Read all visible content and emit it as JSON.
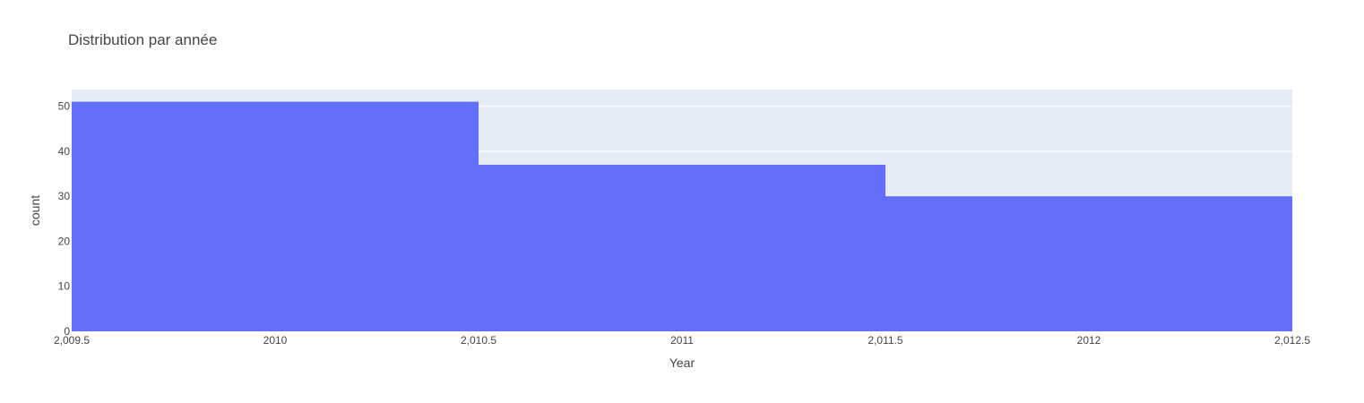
{
  "chart_data": {
    "type": "bar",
    "title": "Distribution par année",
    "xlabel": "Year",
    "ylabel": "count",
    "bins": [
      {
        "x0": 2009.5,
        "x1": 2010.5,
        "value": 51
      },
      {
        "x0": 2010.5,
        "x1": 2011.5,
        "value": 37
      },
      {
        "x0": 2011.5,
        "x1": 2012.5,
        "value": 30
      }
    ],
    "xlim": [
      2009.5,
      2012.5
    ],
    "ylim": [
      0,
      53.7
    ],
    "x_ticks": [
      2009.5,
      2010,
      2010.5,
      2011,
      2011.5,
      2012,
      2012.5
    ],
    "x_tick_labels": [
      "2,009.5",
      "2010",
      "2,010.5",
      "2011",
      "2,011.5",
      "2012",
      "2,012.5"
    ],
    "y_ticks": [
      0,
      10,
      20,
      30,
      40,
      50
    ],
    "y_tick_labels": [
      "0",
      "10",
      "20",
      "30",
      "40",
      "50"
    ],
    "grid": true,
    "colors": {
      "bar": "#636efa",
      "plot_bg": "#e5ecf6",
      "grid": "#ffffff"
    }
  }
}
